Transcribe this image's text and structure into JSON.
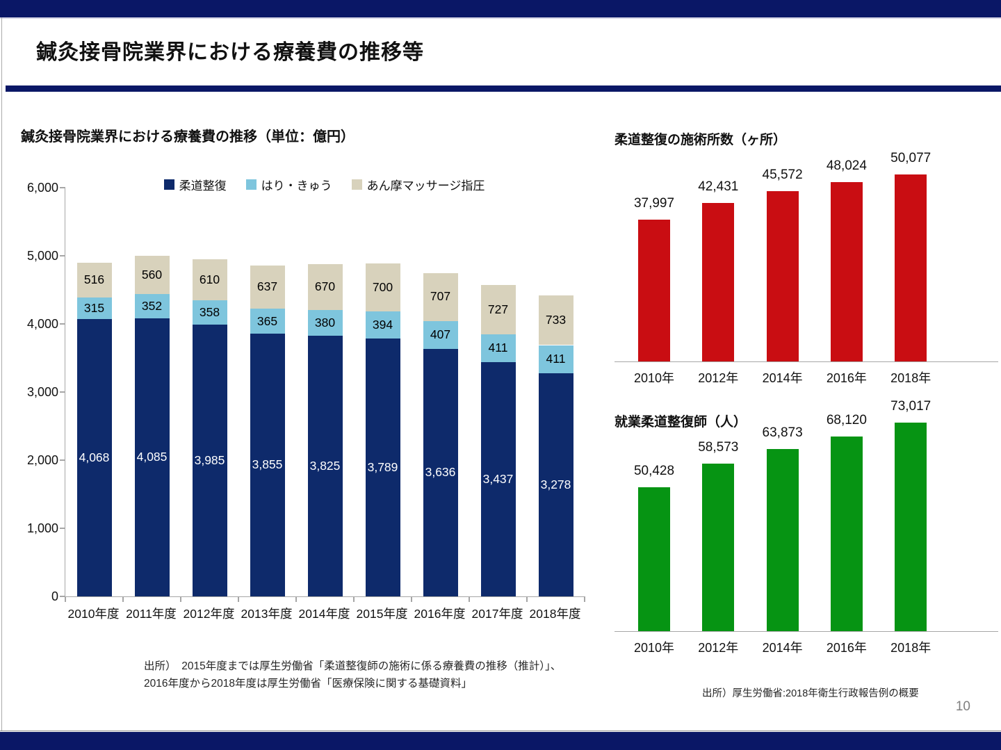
{
  "page": {
    "title": "鍼灸接骨院業界における療養費の推移等",
    "page_number": "10",
    "colors": {
      "accent_navy": "#0A1766",
      "axis_gray": "#A6A6A6",
      "page_number_gray": "#7F7F7F"
    },
    "sources": {
      "left_line1": "出所）　2015年度までは厚生労働省「柔道整復師の施術に係る療養費の推移（推計）」、",
      "left_line2": "2016年度から2018年度は厚生労働省「医療保険に関する基礎資料」",
      "right": "出所）厚生労働省:2018年衛生行政報告例の概要"
    }
  },
  "chart_data": [
    {
      "id": "ryoyohi",
      "type": "bar",
      "stacked": true,
      "title": "鍼灸接骨院業界における療養費の推移（単位：億円）",
      "categories": [
        "2010年度",
        "2011年度",
        "2012年度",
        "2013年度",
        "2014年度",
        "2015年度",
        "2016年度",
        "2017年度",
        "2018年度"
      ],
      "series": [
        {
          "name": "柔道整復",
          "color": "#0E2A6B",
          "label_color": "#FFFFFF",
          "values": [
            4068,
            4085,
            3985,
            3855,
            3825,
            3789,
            3636,
            3437,
            3278
          ]
        },
        {
          "name": "はり・きゅう",
          "color": "#7EC5DD",
          "label_color": "#000000",
          "values": [
            315,
            352,
            358,
            365,
            380,
            394,
            407,
            411,
            411
          ]
        },
        {
          "name": "あん摩マッサージ指圧",
          "color": "#D8D2BC",
          "label_color": "#000000",
          "values": [
            516,
            560,
            610,
            637,
            670,
            700,
            707,
            727,
            733
          ]
        }
      ],
      "ylim": [
        0,
        6000
      ],
      "ytick_step": 1000,
      "legend_position": "top",
      "grid": false,
      "value_labels": "inside-center"
    },
    {
      "id": "sejutsusho",
      "type": "bar",
      "title": "柔道整復の施術所数（ヶ所）",
      "categories": [
        "2010年",
        "2012年",
        "2014年",
        "2016年",
        "2018年"
      ],
      "values": [
        37997,
        42431,
        45572,
        48024,
        50077
      ],
      "color": "#C90D12",
      "grid": false,
      "value_labels": "outside-top"
    },
    {
      "id": "judo_seifukushi",
      "type": "bar",
      "title": "就業柔道整復師（人）",
      "categories": [
        "2010年",
        "2012年",
        "2014年",
        "2016年",
        "2018年"
      ],
      "values": [
        50428,
        58573,
        63873,
        68120,
        73017
      ],
      "color": "#069413",
      "grid": false,
      "value_labels": "outside-top"
    }
  ]
}
